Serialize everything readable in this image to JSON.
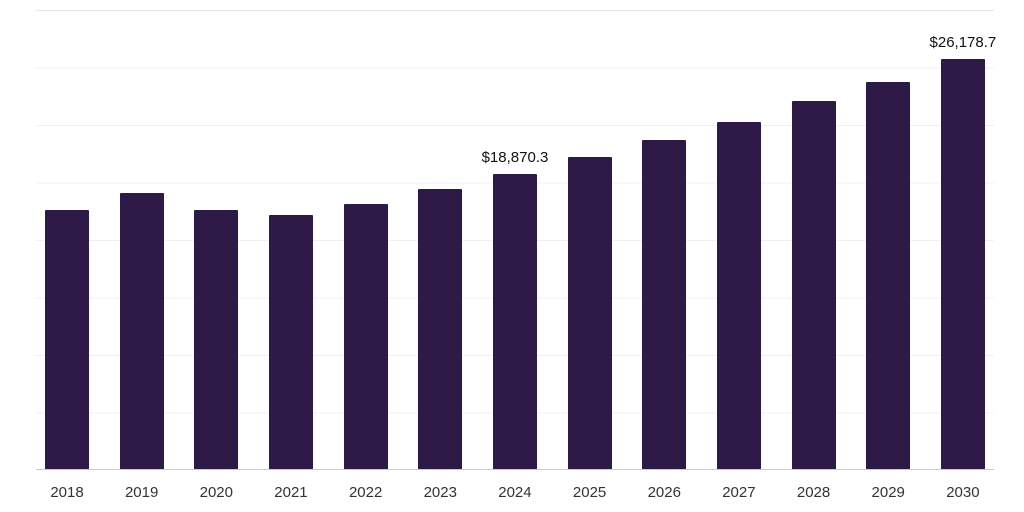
{
  "chart_data": {
    "type": "bar",
    "title": "",
    "xlabel": "",
    "ylabel": "",
    "categories": [
      "2018",
      "2019",
      "2020",
      "2021",
      "2022",
      "2023",
      "2024",
      "2025",
      "2026",
      "2027",
      "2028",
      "2029",
      "2030"
    ],
    "values": [
      16550,
      17650,
      16550,
      16250,
      16950,
      17900,
      18870.3,
      19950,
      21050,
      22200,
      23500,
      24750,
      26178.7
    ],
    "annotations": [
      {
        "category": "2024",
        "text": "$18,870.3"
      },
      {
        "category": "2030",
        "text": "$26,178.7"
      }
    ],
    "ylim": [
      0,
      29400
    ],
    "grid": "horizontal-light",
    "legend": "none",
    "colors": {
      "bar": "#2e1a47",
      "gridline": "#f0f0f0",
      "axis_line": "#c9c9c9",
      "tick_text": "#333333",
      "label_text": "#111111"
    }
  }
}
